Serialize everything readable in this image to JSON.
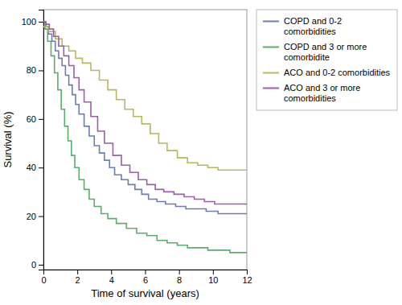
{
  "chart_data": {
    "type": "step",
    "title": "",
    "xlabel": "Time of survival (years)",
    "ylabel": "Survival (%)",
    "xlim": [
      0,
      12
    ],
    "ylim": [
      -2,
      105
    ],
    "xticks": [
      0,
      2,
      4,
      6,
      8,
      10,
      12
    ],
    "yticks": [
      0,
      20,
      40,
      60,
      80,
      100
    ],
    "grid": false,
    "legend": "right",
    "series": [
      {
        "name": "COPD and 0-2\ncomorbidities",
        "color": "#6b7db5",
        "x": [
          0,
          0.15,
          0.3,
          0.5,
          0.7,
          0.9,
          1.1,
          1.3,
          1.5,
          1.7,
          1.9,
          2.1,
          2.4,
          2.7,
          3.0,
          3.3,
          3.6,
          3.9,
          4.2,
          4.6,
          5.0,
          5.4,
          5.8,
          6.2,
          6.7,
          7.2,
          7.8,
          8.4,
          9.0,
          9.6,
          10.3,
          11.0,
          12.0
        ],
        "values": [
          100,
          98,
          95,
          92,
          88,
          85,
          82,
          78,
          74,
          70,
          66,
          62,
          57,
          53,
          49,
          46,
          43,
          40,
          37,
          35,
          33,
          31,
          29,
          27,
          26,
          25,
          24,
          23,
          23,
          22,
          21,
          21,
          21
        ]
      },
      {
        "name": "COPD and 3 or more\ncomorbidite",
        "color": "#5aad6a",
        "x": [
          0,
          0.1,
          0.25,
          0.45,
          0.65,
          0.85,
          1.05,
          1.25,
          1.45,
          1.65,
          1.85,
          2.1,
          2.4,
          2.7,
          3.0,
          3.4,
          3.8,
          4.3,
          4.9,
          5.5,
          6.1,
          6.7,
          7.3,
          7.9,
          8.5,
          9.1,
          9.7,
          10.3,
          11.0,
          11.5,
          12.0
        ],
        "values": [
          100,
          97,
          92,
          86,
          79,
          72,
          64,
          57,
          51,
          45,
          40,
          35,
          31,
          27,
          24,
          21,
          19,
          17,
          15,
          13,
          12,
          10,
          9,
          8,
          7,
          7,
          6,
          6,
          5,
          5,
          5
        ]
      },
      {
        "name": "ACO and 0-2 comorbidities",
        "color": "#b8b860",
        "x": [
          0,
          0.3,
          0.7,
          1.1,
          1.5,
          1.9,
          2.3,
          2.8,
          3.3,
          3.8,
          4.3,
          4.8,
          5.3,
          5.8,
          6.3,
          6.8,
          7.3,
          7.9,
          8.5,
          9.1,
          9.7,
          10.3,
          11.0,
          12.0
        ],
        "values": [
          98,
          96,
          93,
          90,
          88,
          85,
          83,
          80,
          76,
          72,
          68,
          64,
          61,
          58,
          54,
          50,
          47,
          44,
          42,
          41,
          40,
          39,
          39,
          39
        ]
      },
      {
        "name": "ACO and 3 or more\ncomorbidities",
        "color": "#9b5faa",
        "x": [
          0,
          0.15,
          0.35,
          0.6,
          0.9,
          1.2,
          1.5,
          1.8,
          2.1,
          2.4,
          2.8,
          3.2,
          3.6,
          4.1,
          4.6,
          5.1,
          5.6,
          6.1,
          6.6,
          7.1,
          7.7,
          8.3,
          8.9,
          9.5,
          10.1,
          10.7,
          11.3,
          12.0
        ],
        "values": [
          100,
          99,
          97,
          94,
          90,
          86,
          82,
          77,
          72,
          67,
          61,
          55,
          50,
          45,
          41,
          38,
          35,
          33,
          31,
          30,
          29,
          28,
          27,
          26,
          25,
          25,
          25,
          25
        ]
      }
    ]
  }
}
